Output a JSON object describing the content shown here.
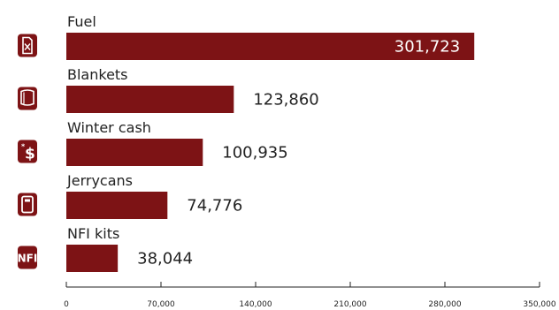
{
  "colors": {
    "bar": "#7d1315",
    "icon_bg": "#7d1315",
    "text": "#222222",
    "value_inside": "#ffffff",
    "axis": "#222222"
  },
  "icons": [
    "fuel-icon",
    "blanket-icon",
    "winter-cash-icon",
    "jerrycan-icon",
    "nfi-kit-icon"
  ],
  "nfi_icon_text": "NFI",
  "chart_data": {
    "type": "bar",
    "orientation": "horizontal",
    "categories": [
      "Fuel",
      "Blankets",
      "Winter cash",
      "Jerrycans",
      "NFI kits"
    ],
    "values": [
      301723,
      123860,
      100935,
      74776,
      38044
    ],
    "value_labels": [
      "301,723",
      "123,860",
      "100,935",
      "74,776",
      "38,044"
    ],
    "xlim": [
      0,
      350000
    ],
    "xticks": [
      0,
      70000,
      140000,
      210000,
      280000,
      350000
    ],
    "xtick_labels": [
      "0",
      "70,000",
      "140,000",
      "210,000",
      "280,000",
      "350,000"
    ],
    "title": "",
    "xlabel": "",
    "ylabel": "",
    "grid": false,
    "legend": "none"
  }
}
